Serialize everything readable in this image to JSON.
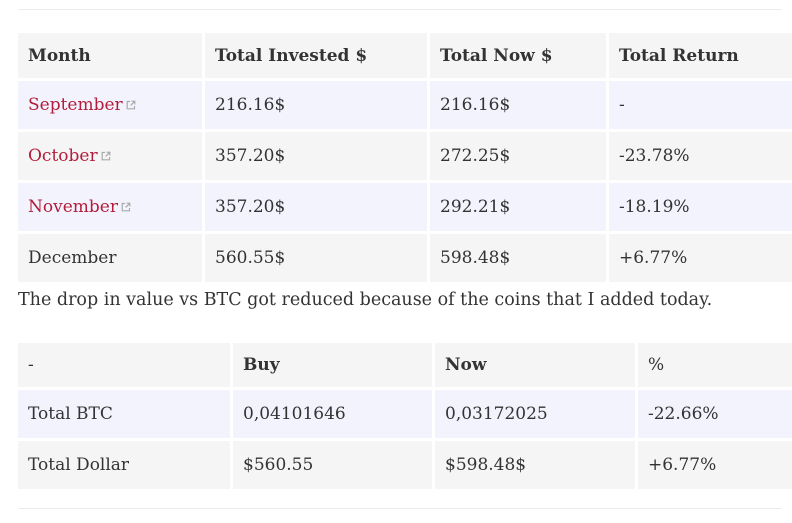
{
  "monthly_table": {
    "headers": [
      "Month",
      "Total Invested $",
      "Total Now $",
      "Total Return"
    ],
    "rows": [
      {
        "month": "September",
        "linked": true,
        "invested": "216.16$",
        "now": "216.16$",
        "return": "-"
      },
      {
        "month": "October",
        "linked": true,
        "invested": "357.20$",
        "now": "272.25$",
        "return": "-23.78%"
      },
      {
        "month": "November",
        "linked": true,
        "invested": "357.20$",
        "now": "292.21$",
        "return": "-18.19%"
      },
      {
        "month": "December",
        "linked": false,
        "invested": "560.55$",
        "now": "598.48$",
        "return": "+6.77%"
      }
    ]
  },
  "paragraph": "The drop in value vs BTC got reduced because of the coins that I added today.",
  "totals_table": {
    "headers": [
      "-",
      "Buy",
      "Now",
      "%"
    ],
    "rows": [
      {
        "label": "Total BTC",
        "buy": "0,04101646",
        "now": "0,03172025",
        "percent": "-22.66%"
      },
      {
        "label": "Total Dollar",
        "buy": "$560.55",
        "now": "$598.48$",
        "percent": "+6.77%"
      }
    ]
  },
  "colors": {
    "link": "#b31d3b",
    "row_grey": "#f5f5f5",
    "row_tint": "#f3f3fd",
    "text": "#333333"
  },
  "icons": {
    "external_link": "external-link-icon"
  }
}
